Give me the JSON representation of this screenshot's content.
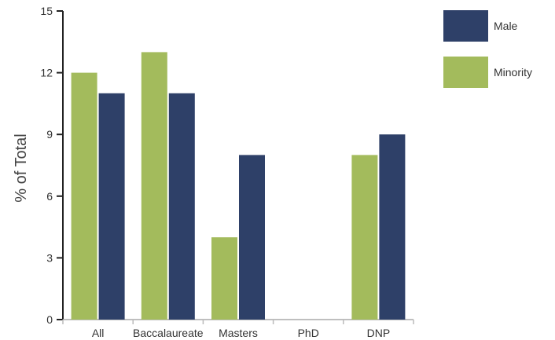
{
  "chart_data": {
    "type": "bar",
    "categories": [
      "All",
      "Baccalaureate",
      "Masters",
      "PhD",
      "DNP"
    ],
    "series": [
      {
        "name": "Minority",
        "values": [
          12,
          13,
          4,
          0,
          8
        ],
        "color": "#a3bb5c"
      },
      {
        "name": "Male",
        "values": [
          11,
          11,
          8,
          0,
          9
        ],
        "color": "#2e4068"
      }
    ],
    "ylabel": "% of Total",
    "ylim": [
      0,
      15
    ],
    "yticks": [
      0,
      3,
      6,
      9,
      12,
      15
    ],
    "grid": false,
    "legend_position": "top-right",
    "legend_order": [
      "Male",
      "Minority"
    ]
  }
}
